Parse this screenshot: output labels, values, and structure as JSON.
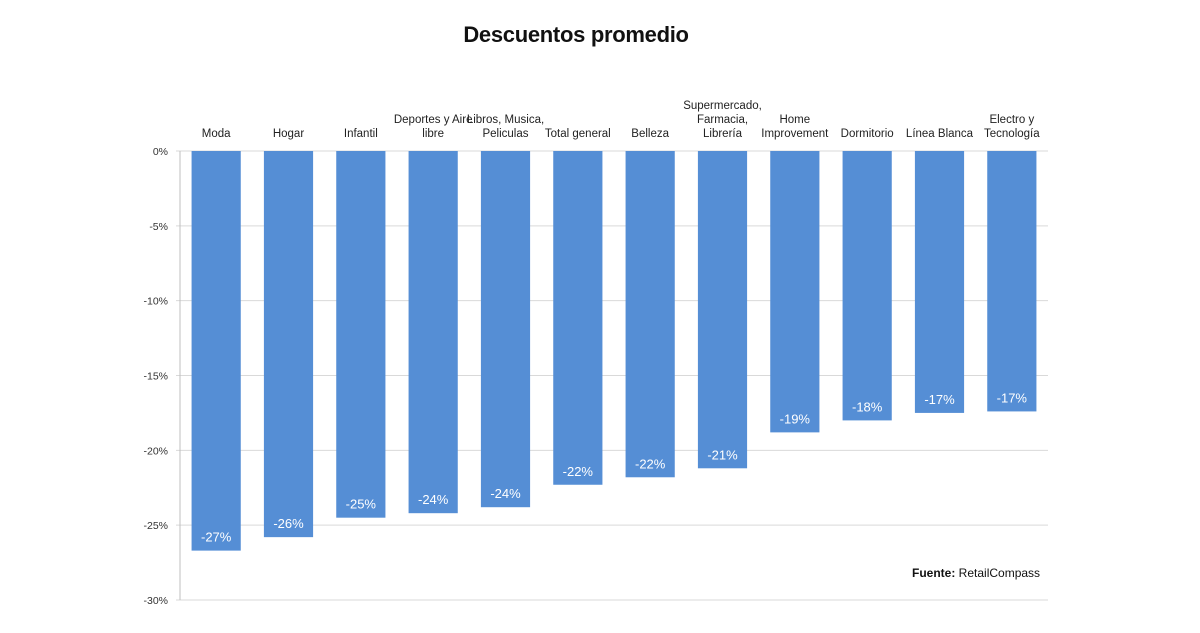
{
  "chart_data": {
    "type": "bar",
    "title": "Descuentos promedio",
    "xlabel": "",
    "ylabel": "",
    "categories": [
      [
        "Moda"
      ],
      [
        "Hogar"
      ],
      [
        "Infantil"
      ],
      [
        "Deportes y Aire",
        "libre"
      ],
      [
        "Libros, Musica,",
        "Peliculas"
      ],
      [
        "Total general"
      ],
      [
        "Belleza"
      ],
      [
        "Supermercado,",
        "Farmacia,",
        "Librería"
      ],
      [
        "Home",
        "Improvement"
      ],
      [
        "Dormitorio"
      ],
      [
        "Línea Blanca"
      ],
      [
        "Electro y",
        "Tecnología"
      ]
    ],
    "values": [
      -26.7,
      -25.8,
      -24.5,
      -24.2,
      -23.8,
      -22.3,
      -21.8,
      -21.2,
      -18.8,
      -18.0,
      -17.5,
      -17.4
    ],
    "data_labels": [
      "-27%",
      "-26%",
      "-25%",
      "-24%",
      "-24%",
      "-22%",
      "-22%",
      "-21%",
      "-19%",
      "-18%",
      "-17%",
      "-17%"
    ],
    "ylim": [
      -30,
      0
    ],
    "yticks": [
      0,
      -5,
      -10,
      -15,
      -20,
      -25,
      -30
    ],
    "ytick_labels": [
      "0%",
      "-5%",
      "-10%",
      "-15%",
      "-20%",
      "-25%",
      "-30%"
    ],
    "category_axis_position": "top",
    "grid": true,
    "legend": "none",
    "bar_color": "#558ed5",
    "grid_color": "#d9d9d9"
  },
  "source": {
    "prefix": "Fuente:",
    "text": " RetailCompass"
  }
}
